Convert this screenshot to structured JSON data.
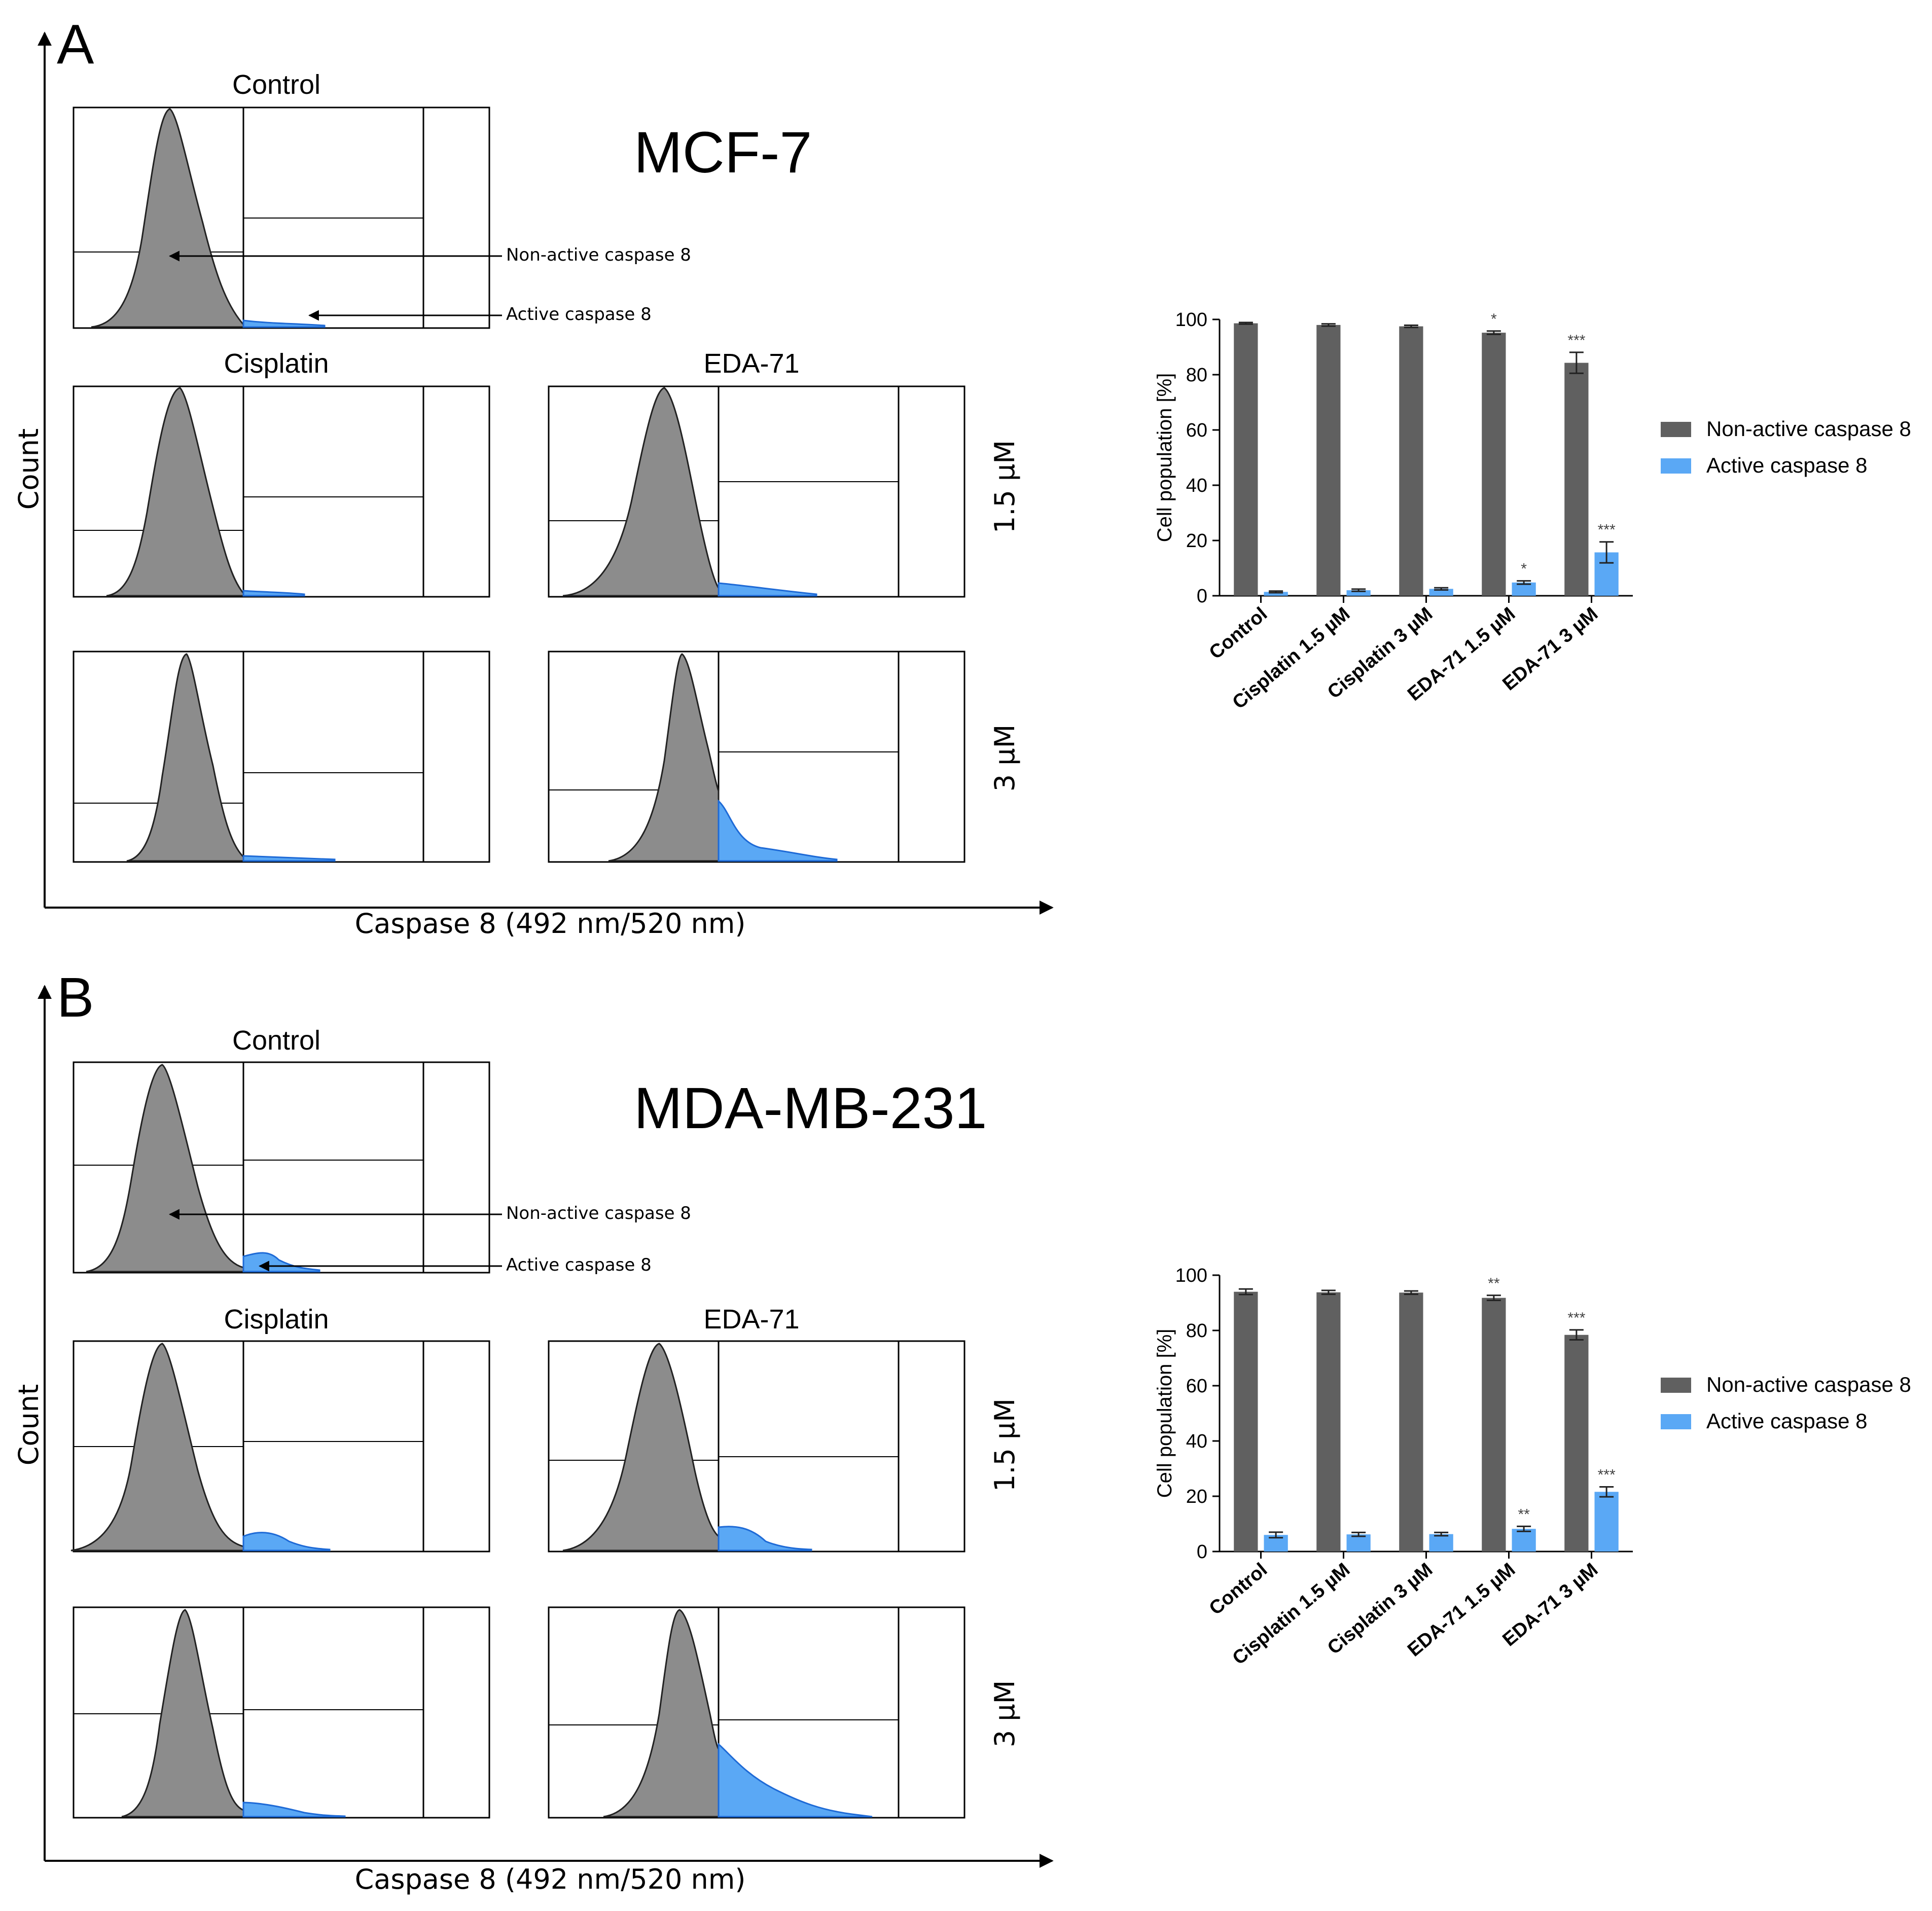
{
  "figure": {
    "panels": [
      {
        "letter": "A",
        "cell_line": "MCF-7",
        "histograms": {
          "labels": {
            "control": "Control",
            "cisplatin": "Cisplatin",
            "eda71": "EDA-71",
            "dose_low": "1.5 µM",
            "dose_high": "3 µM",
            "count_axis": "Count",
            "x_axis": "Caspase 8 (492 nm/520 nm)",
            "arrow_nonactive": "Non-active caspase 8",
            "arrow_active": "Active caspase 8"
          }
        }
      },
      {
        "letter": "B",
        "cell_line": "MDA-MB-231",
        "histograms": {
          "labels": {
            "control": "Control",
            "cisplatin": "Cisplatin",
            "eda71": "EDA-71",
            "dose_low": "1.5 µM",
            "dose_high": "3 µM",
            "count_axis": "Count",
            "x_axis": "Caspase 8 (492 nm/520 nm)",
            "arrow_nonactive": "Non-active caspase 8",
            "arrow_active": "Active caspase 8"
          }
        }
      }
    ],
    "colors": {
      "nonactive": "#606060",
      "active": "#5aa8f5",
      "hist_fill": "#8c8c8c",
      "hist_active": "#5aa8f5"
    }
  },
  "chart_data": [
    {
      "type": "bar",
      "panel": "A",
      "title": "",
      "xlabel": "",
      "ylabel": "Cell population [%]",
      "ylim": [
        0,
        100
      ],
      "yticks": [
        0,
        20,
        40,
        60,
        80,
        100
      ],
      "categories": [
        "Control",
        "Cisplatin 1.5 µM",
        "Cisplatin 3 µM",
        "EDA-71 1.5 µM",
        "EDA-71 3 µM"
      ],
      "series": [
        {
          "name": "Non-active caspase 8",
          "values": [
            98.6,
            98.0,
            97.5,
            95.2,
            84.3
          ],
          "errors": [
            0.3,
            0.4,
            0.4,
            0.6,
            3.8
          ],
          "significance": [
            "",
            "",
            "",
            "*",
            "***"
          ]
        },
        {
          "name": "Active caspase 8",
          "values": [
            1.4,
            2.0,
            2.5,
            4.8,
            15.7
          ],
          "errors": [
            0.3,
            0.4,
            0.4,
            0.6,
            3.8
          ],
          "significance": [
            "",
            "",
            "",
            "*",
            "***"
          ]
        }
      ],
      "legend": "right"
    },
    {
      "type": "bar",
      "panel": "B",
      "title": "",
      "xlabel": "",
      "ylabel": "Cell population [%]",
      "ylim": [
        0,
        100
      ],
      "yticks": [
        0,
        20,
        40,
        60,
        80,
        100
      ],
      "categories": [
        "Control",
        "Cisplatin 1.5 µM",
        "Cisplatin 3 µM",
        "EDA-71 1.5 µM",
        "EDA-71 3 µM"
      ],
      "series": [
        {
          "name": "Non-active caspase 8",
          "values": [
            94.0,
            93.8,
            93.7,
            91.8,
            78.4
          ],
          "errors": [
            1.0,
            0.7,
            0.6,
            0.9,
            1.8
          ],
          "significance": [
            "",
            "",
            "",
            "**",
            "***"
          ]
        },
        {
          "name": "Active caspase 8",
          "values": [
            6.0,
            6.2,
            6.3,
            8.2,
            21.6
          ],
          "errors": [
            1.0,
            0.7,
            0.6,
            0.9,
            1.8
          ],
          "significance": [
            "",
            "",
            "",
            "**",
            "***"
          ]
        }
      ],
      "legend": "right"
    }
  ]
}
